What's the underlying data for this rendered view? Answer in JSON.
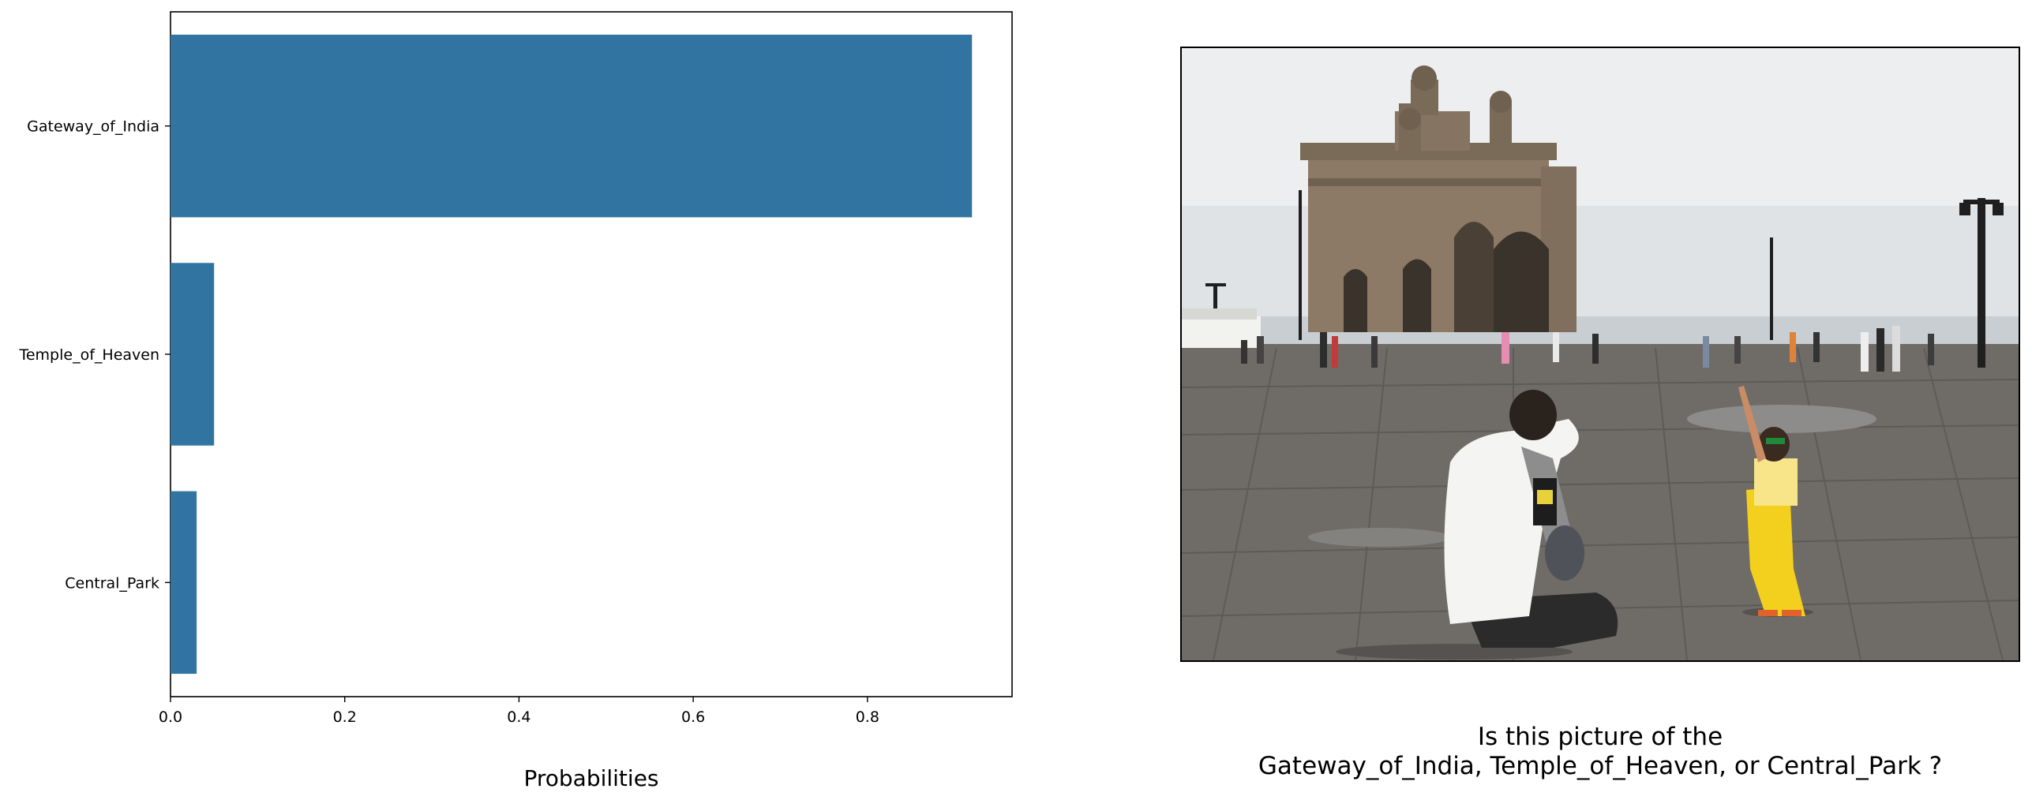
{
  "chart_data": {
    "type": "bar",
    "orientation": "horizontal",
    "categories": [
      "Gateway_of_India",
      "Temple_of_Heaven",
      "Central_Park"
    ],
    "values": [
      0.92,
      0.05,
      0.03
    ],
    "xlabel": "Probabilities",
    "ylabel": "",
    "xlim": [
      0,
      0.966
    ],
    "xticks": [
      "0.0",
      "0.2",
      "0.4",
      "0.6",
      "0.8"
    ],
    "grid": false,
    "bar_color": "#3274a1"
  },
  "question": {
    "line1": "Is this picture of the",
    "line2": "Gateway_of_India, Temple_of_Heaven, or Central_Park ?"
  },
  "photo": {
    "subject": "Gateway of India monument with visitors, a photographer crouching and a child in yellow"
  },
  "colors": {
    "sky": "#dfe3e6",
    "monument": "#8c7a66",
    "pavement": "#6f6c68",
    "shirt": "#f4f4f2",
    "child": "#f3cf1e"
  }
}
